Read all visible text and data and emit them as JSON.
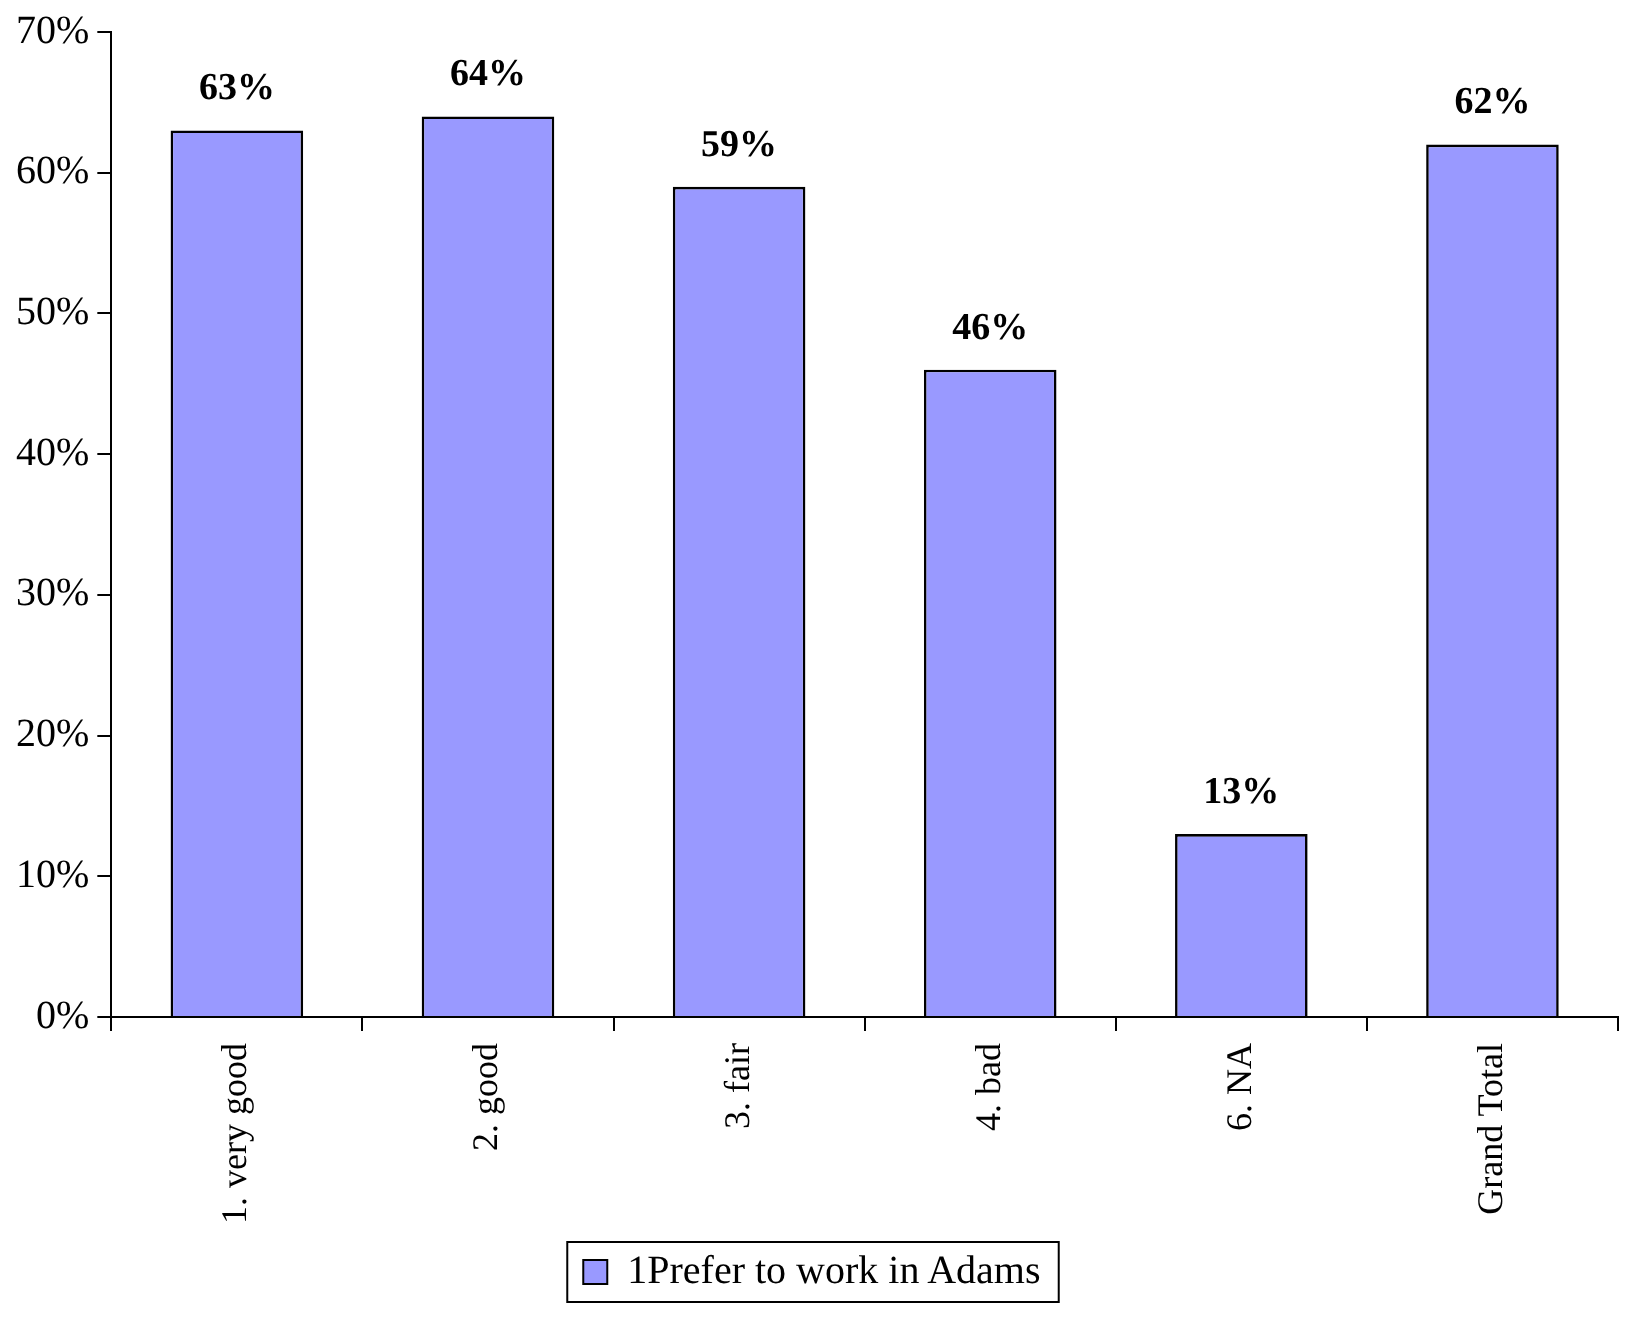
{
  "chart_data": {
    "type": "bar",
    "categories": [
      "1. very good",
      "2. good",
      "3. fair",
      "4. bad",
      "6. NA",
      "Grand Total"
    ],
    "series": [
      {
        "name": "1Prefer to work in Adams",
        "color": "#9999ff",
        "values": [
          63,
          64,
          59,
          46,
          13,
          62
        ],
        "value_labels": [
          "63%",
          "64%",
          "59%",
          "46%",
          "13%",
          "62%"
        ]
      }
    ],
    "ylim": [
      0,
      70
    ],
    "yticks": [
      {
        "value": 0,
        "label": "0%"
      },
      {
        "value": 10,
        "label": "10%"
      },
      {
        "value": 20,
        "label": "20%"
      },
      {
        "value": 30,
        "label": "30%"
      },
      {
        "value": 40,
        "label": "40%"
      },
      {
        "value": 50,
        "label": "50%"
      },
      {
        "value": 60,
        "label": "60%"
      },
      {
        "value": 70,
        "label": "70%"
      }
    ],
    "grid": false,
    "legend": "bottom"
  }
}
